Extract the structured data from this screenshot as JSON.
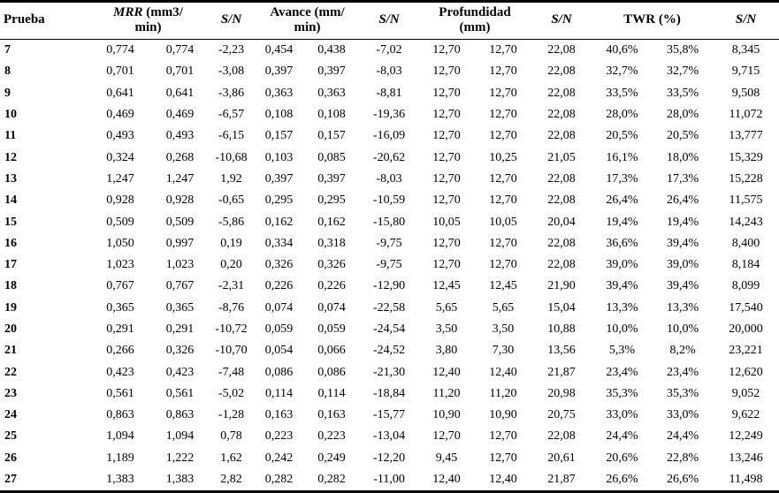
{
  "table": {
    "header": {
      "prueba": "Prueba",
      "mrr": {
        "em": "MRR",
        "l1rest": " (mm3/",
        "l2": "min)"
      },
      "sn": "S/N",
      "avance": {
        "l1": "Avance (mm/",
        "l2": "min)"
      },
      "profundidad": {
        "l1": "Profundidad",
        "l2": "(mm)"
      },
      "twr": "TWR (%)"
    },
    "rows": [
      [
        "7",
        "0,774",
        "0,774",
        "-2,23",
        "0,454",
        "0,438",
        "-7,02",
        "12,70",
        "12,70",
        "22,08",
        "40,6%",
        "35,8%",
        "8,345"
      ],
      [
        "8",
        "0,701",
        "0,701",
        "-3,08",
        "0,397",
        "0,397",
        "-8,03",
        "12,70",
        "12,70",
        "22,08",
        "32,7%",
        "32,7%",
        "9,715"
      ],
      [
        "9",
        "0,641",
        "0,641",
        "-3,86",
        "0,363",
        "0,363",
        "-8,81",
        "12,70",
        "12,70",
        "22,08",
        "33,5%",
        "33,5%",
        "9,508"
      ],
      [
        "10",
        "0,469",
        "0,469",
        "-6,57",
        "0,108",
        "0,108",
        "-19,36",
        "12,70",
        "12,70",
        "22,08",
        "28,0%",
        "28,0%",
        "11,072"
      ],
      [
        "11",
        "0,493",
        "0,493",
        "-6,15",
        "0,157",
        "0,157",
        "-16,09",
        "12,70",
        "12,70",
        "22,08",
        "20,5%",
        "20,5%",
        "13,777"
      ],
      [
        "12",
        "0,324",
        "0,268",
        "-10,68",
        "0,103",
        "0,085",
        "-20,62",
        "12,70",
        "10,25",
        "21,05",
        "16,1%",
        "18,0%",
        "15,329"
      ],
      [
        "13",
        "1,247",
        "1,247",
        "1,92",
        "0,397",
        "0,397",
        "-8,03",
        "12,70",
        "12,70",
        "22,08",
        "17,3%",
        "17,3%",
        "15,228"
      ],
      [
        "14",
        "0,928",
        "0,928",
        "-0,65",
        "0,295",
        "0,295",
        "-10,59",
        "12,70",
        "12,70",
        "22,08",
        "26,4%",
        "26,4%",
        "11,575"
      ],
      [
        "15",
        "0,509",
        "0,509",
        "-5,86",
        "0,162",
        "0,162",
        "-15,80",
        "10,05",
        "10,05",
        "20,04",
        "19,4%",
        "19,4%",
        "14,243"
      ],
      [
        "16",
        "1,050",
        "0,997",
        "0,19",
        "0,334",
        "0,318",
        "-9,75",
        "12,70",
        "12,70",
        "22,08",
        "36,6%",
        "39,4%",
        "8,400"
      ],
      [
        "17",
        "1,023",
        "1,023",
        "0,20",
        "0,326",
        "0,326",
        "-9,75",
        "12,70",
        "12,70",
        "22,08",
        "39,0%",
        "39,0%",
        "8,184"
      ],
      [
        "18",
        "0,767",
        "0,767",
        "-2,31",
        "0,226",
        "0,226",
        "-12,90",
        "12,45",
        "12,45",
        "21,90",
        "39,4%",
        "39,4%",
        "8,099"
      ],
      [
        "19",
        "0,365",
        "0,365",
        "-8,76",
        "0,074",
        "0,074",
        "-22,58",
        "5,65",
        "5,65",
        "15,04",
        "13,3%",
        "13,3%",
        "17,540"
      ],
      [
        "20",
        "0,291",
        "0,291",
        "-10,72",
        "0,059",
        "0,059",
        "-24,54",
        "3,50",
        "3,50",
        "10,88",
        "10,0%",
        "10,0%",
        "20,000"
      ],
      [
        "21",
        "0,266",
        "0,326",
        "-10,70",
        "0,054",
        "0,066",
        "-24,52",
        "3,80",
        "7,30",
        "13,56",
        "5,3%",
        "8,2%",
        "23,221"
      ],
      [
        "22",
        "0,423",
        "0,423",
        "-7,48",
        "0,086",
        "0,086",
        "-21,30",
        "12,40",
        "12,40",
        "21,87",
        "23,4%",
        "23,4%",
        "12,620"
      ],
      [
        "23",
        "0,561",
        "0,561",
        "-5,02",
        "0,114",
        "0,114",
        "-18,84",
        "11,20",
        "11,20",
        "20,98",
        "35,3%",
        "35,3%",
        "9,052"
      ],
      [
        "24",
        "0,863",
        "0,863",
        "-1,28",
        "0,163",
        "0,163",
        "-15,77",
        "10,90",
        "10,90",
        "20,75",
        "33,0%",
        "33,0%",
        "9,622"
      ],
      [
        "25",
        "1,094",
        "1,094",
        "0,78",
        "0,223",
        "0,223",
        "-13,04",
        "12,70",
        "12,70",
        "22,08",
        "24,4%",
        "24,4%",
        "12,249"
      ],
      [
        "26",
        "1,189",
        "1,222",
        "1,62",
        "0,242",
        "0,249",
        "-12,20",
        "9,45",
        "12,70",
        "20,61",
        "20,6%",
        "22,8%",
        "13,246"
      ],
      [
        "27",
        "1,383",
        "1,383",
        "2,82",
        "0,282",
        "0,282",
        "-11,00",
        "12,40",
        "12,40",
        "21,87",
        "26,6%",
        "26,6%",
        "11,498"
      ]
    ],
    "colors": {
      "rule": "#000000",
      "background": "#ffffff",
      "text": "#000000"
    }
  }
}
